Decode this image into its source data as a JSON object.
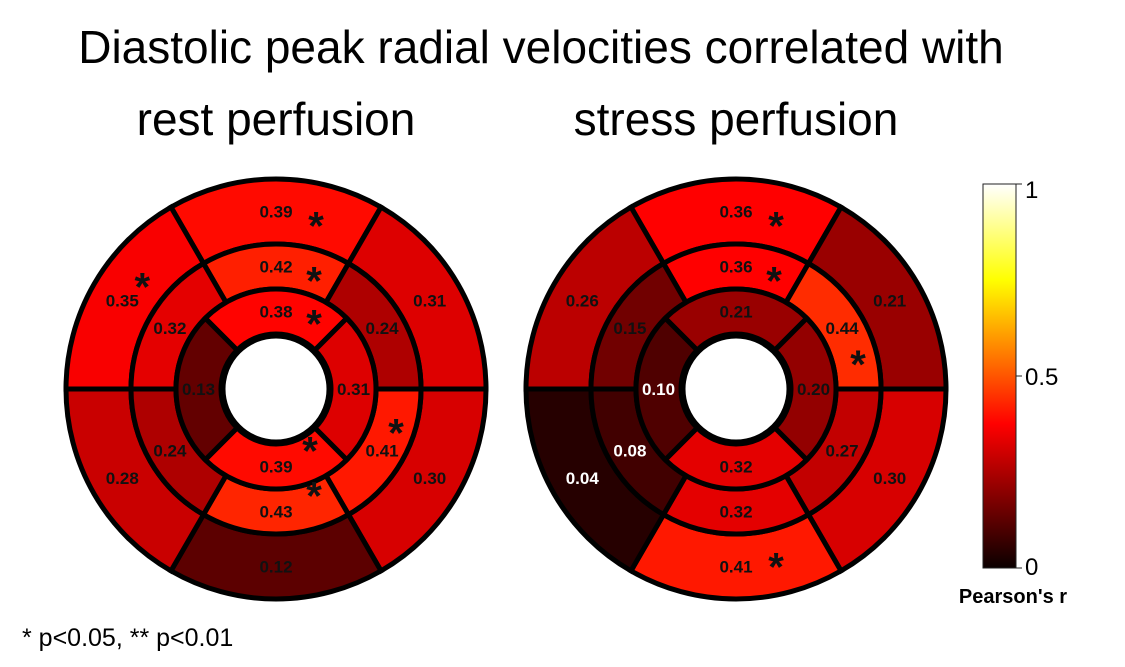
{
  "title_line1": "Diastolic peak radial velocities correlated with",
  "footnote": "* p<0.05, ** p<0.01",
  "chart_data": [
    {
      "type": "polar-bullseye",
      "title": "rest perfusion",
      "segment_order": "AHA 1-16 (basal 1-6, mid 7-12, apical 13-16)",
      "values": [
        0.39,
        0.31,
        0.3,
        0.12,
        0.28,
        0.35,
        0.42,
        0.24,
        0.41,
        0.43,
        0.24,
        0.32,
        0.38,
        0.31,
        0.39,
        0.13
      ],
      "labels": [
        "0.39",
        "0.31",
        "0.30",
        "0.12",
        "0.28",
        "0.35",
        "0.42",
        "0.24",
        "0.41",
        "0.43",
        "0.24",
        "0.32",
        "0.38",
        "0.31",
        "0.39",
        "0.13"
      ],
      "significance": [
        "*",
        "",
        "",
        "",
        "",
        "*",
        "*",
        "",
        "*",
        "*",
        "",
        "",
        "*",
        "",
        "*",
        ""
      ]
    },
    {
      "type": "polar-bullseye",
      "title": "stress perfusion",
      "segment_order": "AHA 1-16 (basal 1-6, mid 7-12, apical 13-16)",
      "values": [
        0.36,
        0.21,
        0.3,
        0.41,
        0.04,
        0.26,
        0.36,
        0.44,
        0.27,
        0.32,
        0.08,
        0.15,
        0.21,
        0.2,
        0.32,
        0.1
      ],
      "labels": [
        "0.36",
        "0.21",
        "0.30",
        "0.41",
        "0.04",
        "0.26",
        "0.36",
        "0.44",
        "0.27",
        "0.32",
        "0.08",
        "0.15",
        "0.21",
        "0.20",
        "0.32",
        "0.10"
      ],
      "significance": [
        "*",
        "",
        "",
        "*",
        "",
        "",
        "*",
        "*",
        "",
        "",
        "",
        "",
        "",
        "",
        "",
        ""
      ]
    }
  ],
  "colorbar": {
    "colormap": "hot",
    "min": 0,
    "max": 1,
    "ticks": [
      "0",
      "0.5",
      "1"
    ],
    "label": "Pearson's r"
  }
}
